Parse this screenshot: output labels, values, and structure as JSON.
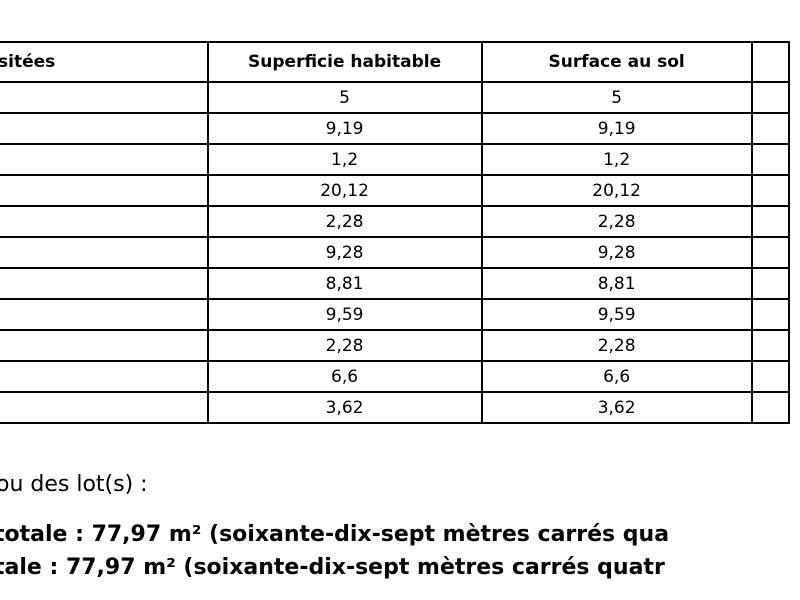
{
  "table": {
    "header": [
      "sitées",
      "Superficie habitable",
      "Surface au sol"
    ],
    "rows": [
      [
        "5",
        "5"
      ],
      [
        "9,19",
        "9,19"
      ],
      [
        "1,2",
        "1,2"
      ],
      [
        "20,12",
        "20,12"
      ],
      [
        "2,28",
        "2,28"
      ],
      [
        "9,28",
        "9,28"
      ],
      [
        "8,81",
        "8,81"
      ],
      [
        "9,59",
        "9,59"
      ],
      [
        "2,28",
        "2,28"
      ],
      [
        "6,6",
        "6,6"
      ],
      [
        "3,62",
        "3,62"
      ]
    ]
  },
  "text": {
    "intro": "ou des lot(s) :",
    "line1": "totale : 77,97 m² (soixante-dix-sept mètres carrés qua",
    "line2": "tale : 77,97 m² (soixante-dix-sept mètres carrés quatr"
  }
}
